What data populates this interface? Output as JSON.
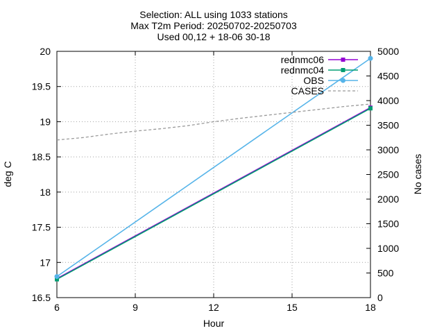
{
  "chart_data": {
    "type": "line",
    "title_lines": [
      "Selection: ALL using  1033 stations",
      "Max T2m   Period: 20250702-20250703",
      "Used 00,12 + 18-06 30-18"
    ],
    "xlabel": "Hour",
    "ylabel": "deg C",
    "y2label": "No cases",
    "xlim": [
      6,
      18
    ],
    "ylim": [
      16.5,
      20
    ],
    "y2lim": [
      0,
      5000
    ],
    "xticks": [
      6,
      9,
      12,
      15,
      18
    ],
    "yticks": [
      "16.5",
      "17",
      "17.5",
      "18",
      "18.5",
      "19",
      "19.5",
      "20"
    ],
    "y2ticks": [
      0,
      500,
      1000,
      1500,
      2000,
      2500,
      3000,
      3500,
      4000,
      4500,
      5000
    ],
    "grid": true,
    "legend_position": "top-right",
    "series": [
      {
        "name": "rednmc06",
        "axis": "y",
        "color": "#9400d3",
        "marker": "square",
        "style": "solid",
        "x": [
          6,
          18
        ],
        "y": [
          16.77,
          19.2
        ]
      },
      {
        "name": "rednmc04",
        "axis": "y",
        "color": "#009e73",
        "marker": "square",
        "style": "solid",
        "x": [
          6,
          18
        ],
        "y": [
          16.76,
          19.19
        ]
      },
      {
        "name": "OBS",
        "axis": "y",
        "color": "#56b4e9",
        "marker": "circle",
        "style": "solid",
        "x": [
          6,
          18
        ],
        "y": [
          16.8,
          19.9
        ]
      },
      {
        "name": "CASES",
        "axis": "y2",
        "color": "#999999",
        "marker": "none",
        "style": "dashed",
        "x": [
          6,
          7,
          8,
          9,
          10,
          11,
          12,
          13,
          14,
          15,
          16,
          17,
          18
        ],
        "y": [
          3200,
          3250,
          3320,
          3380,
          3430,
          3490,
          3570,
          3640,
          3700,
          3760,
          3820,
          3880,
          3930
        ]
      }
    ]
  }
}
